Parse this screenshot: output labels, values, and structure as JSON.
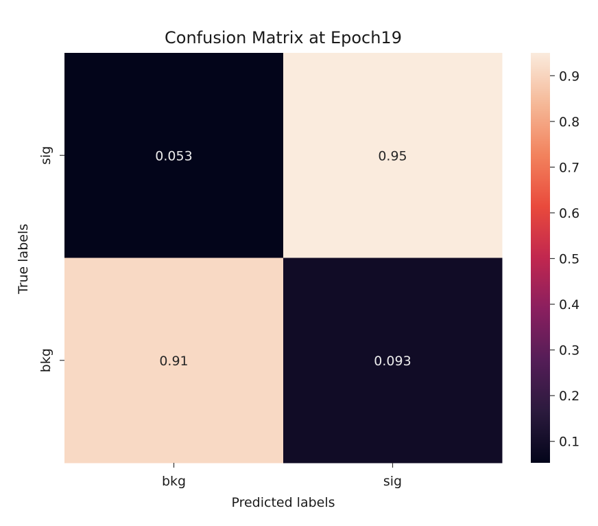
{
  "chart_data": {
    "type": "heatmap",
    "title": "Confusion Matrix at Epoch19",
    "xlabel": "Predicted labels",
    "ylabel": "True labels",
    "x_categories": [
      "bkg",
      "sig"
    ],
    "y_categories": [
      "sig",
      "bkg"
    ],
    "values": [
      [
        0.053,
        0.95
      ],
      [
        0.91,
        0.093
      ]
    ],
    "cell_labels": [
      [
        "0.053",
        "0.95"
      ],
      [
        "0.91",
        "0.093"
      ]
    ],
    "colorbar": {
      "range": [
        0.053,
        0.95
      ],
      "ticks": [
        "0.1",
        "0.2",
        "0.3",
        "0.4",
        "0.5",
        "0.6",
        "0.7",
        "0.8",
        "0.9"
      ],
      "colormap": "rocket"
    }
  }
}
